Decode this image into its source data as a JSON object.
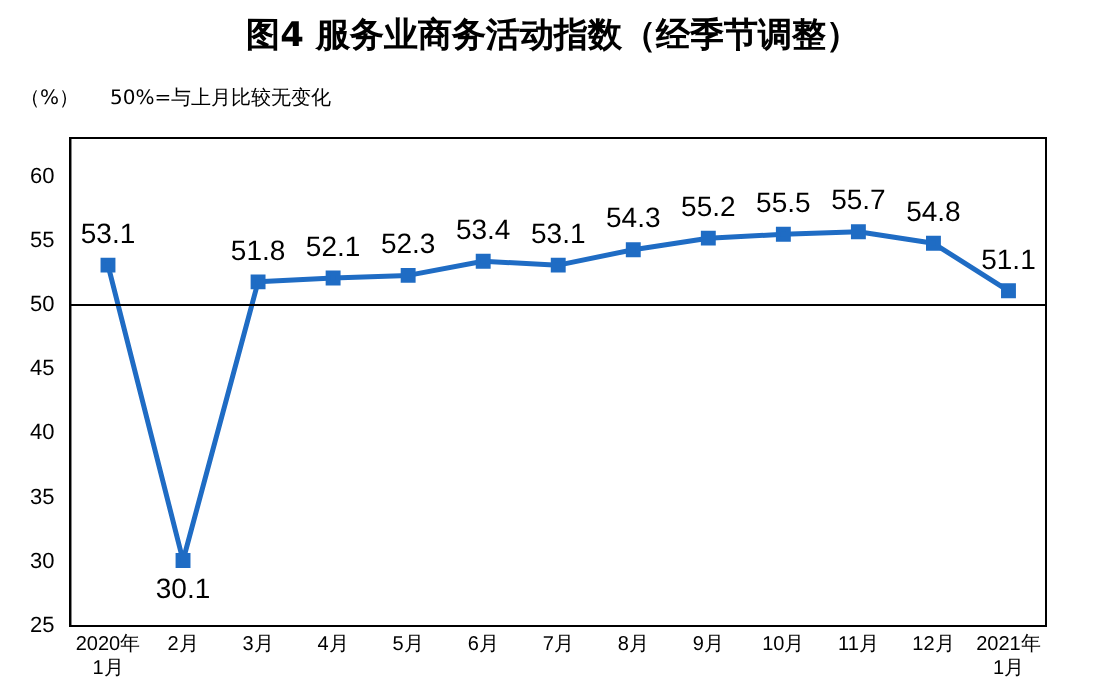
{
  "chart_data": {
    "type": "line",
    "title": "图4  服务业商务活动指数（经季节调整）",
    "ylabel": "（%）",
    "annotations": [
      "50%=与上月比较无变化"
    ],
    "categories": [
      "2020年\n1月",
      "2月",
      "3月",
      "4月",
      "5月",
      "6月",
      "7月",
      "8月",
      "9月",
      "10月",
      "11月",
      "12月",
      "2021年\n1月"
    ],
    "series": [
      {
        "color": "#1f6cc4",
        "values": [
          53.1,
          30.1,
          51.8,
          52.1,
          52.3,
          53.4,
          53.1,
          54.3,
          55.2,
          55.5,
          55.7,
          54.8,
          51.1
        ]
      }
    ],
    "ylim": [
      25,
      63
    ],
    "yticks": [
      25,
      30,
      35,
      40,
      45,
      50,
      55,
      60
    ],
    "ref_lines": [
      {
        "axis": "y",
        "value": 50,
        "color": "#000000"
      }
    ],
    "data_labels": true,
    "marker": "square",
    "line_style": "solid",
    "grid": false,
    "legend": false
  }
}
